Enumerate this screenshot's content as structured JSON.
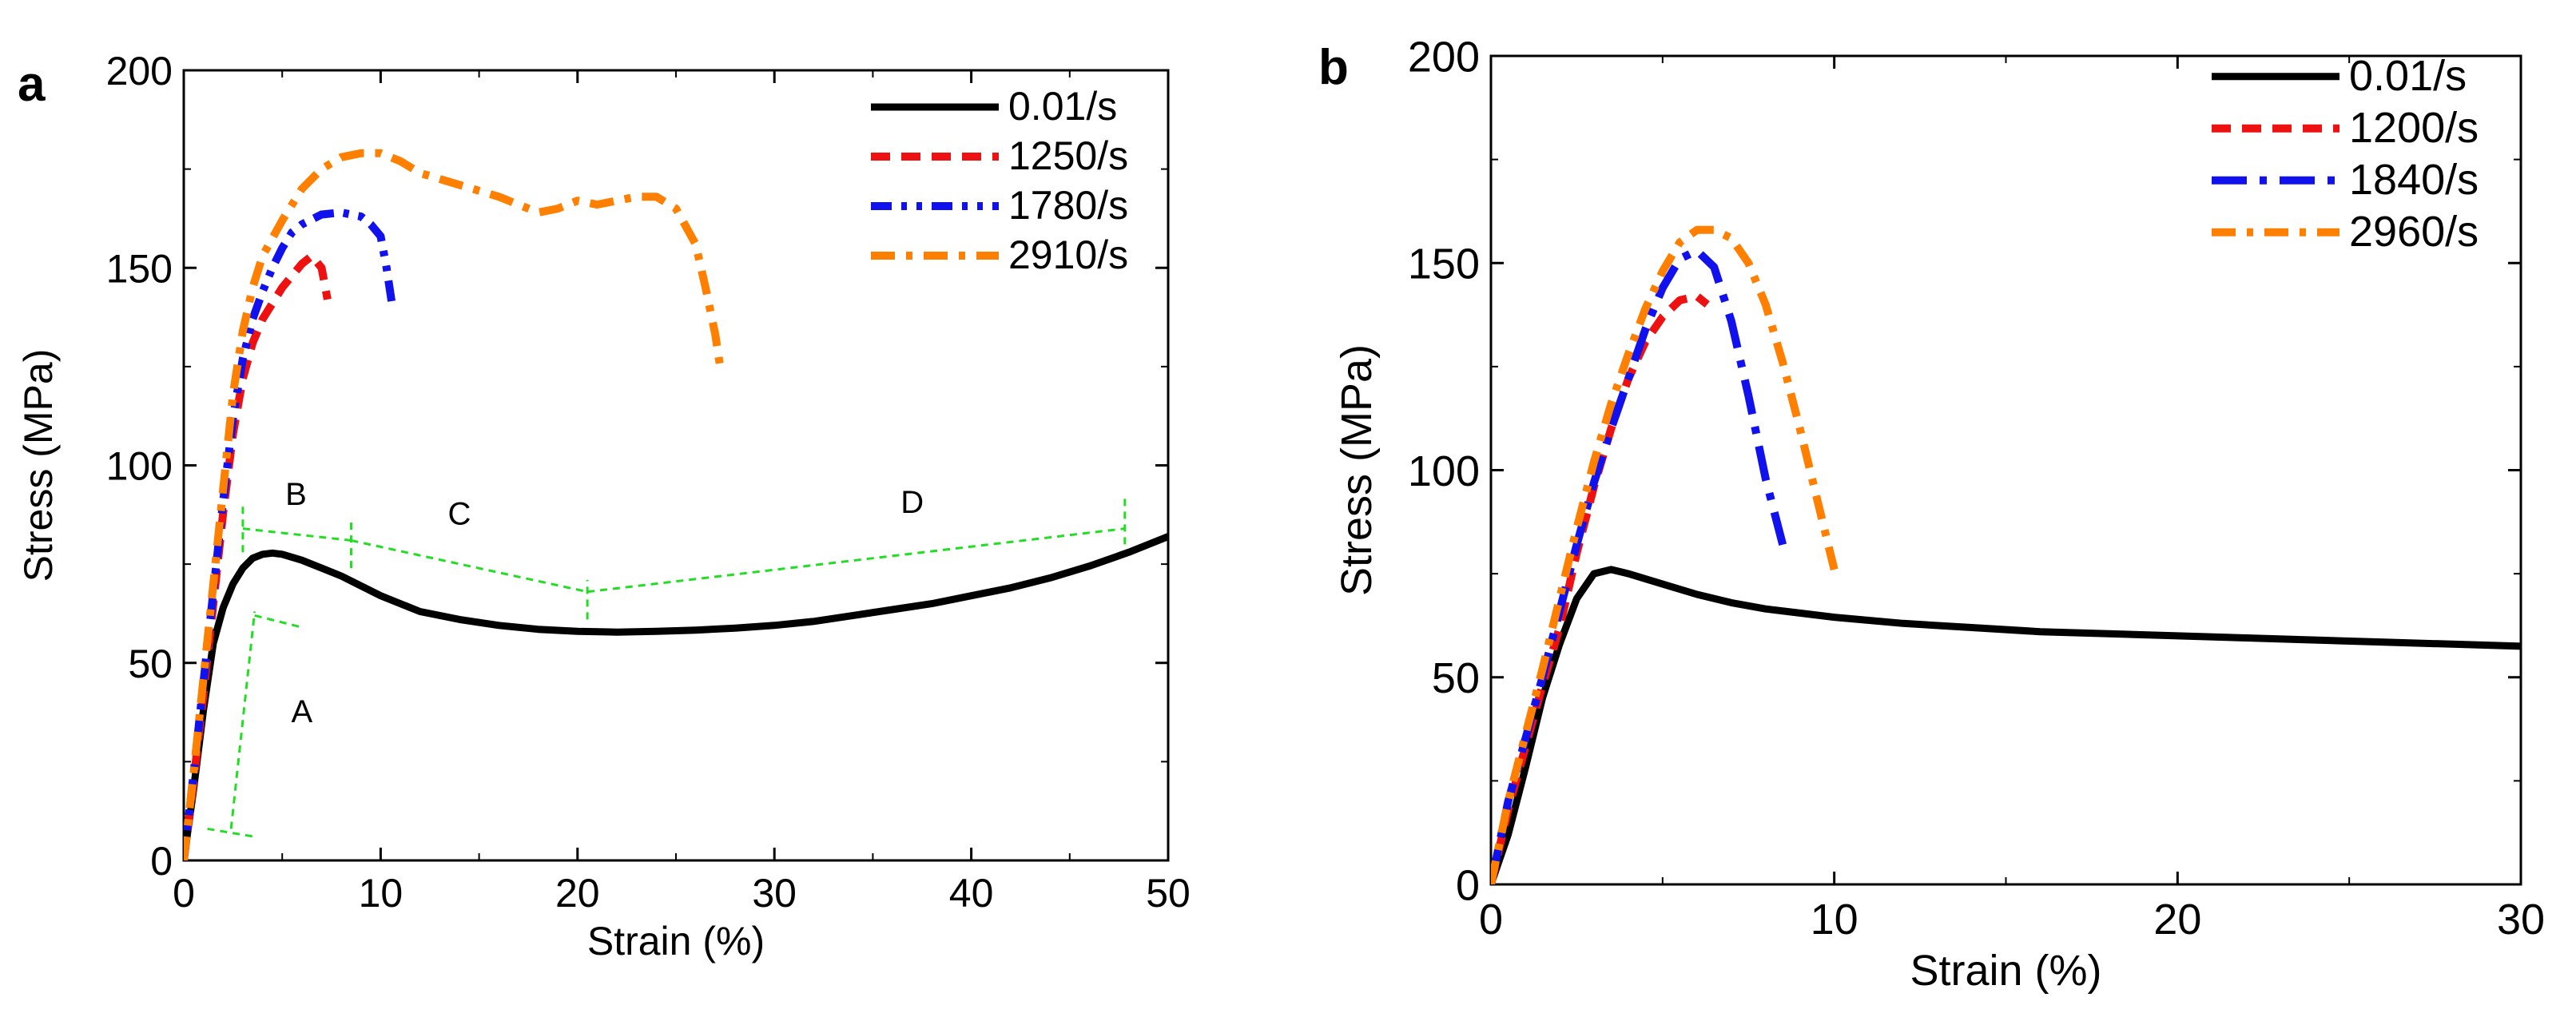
{
  "chart_data": [
    {
      "panel_label": "a",
      "type": "line",
      "title": "",
      "xlabel": "Strain (%)",
      "ylabel": "Stress (MPa)",
      "xlim": [
        0,
        50
      ],
      "ylim": [
        0,
        200
      ],
      "xticks": [
        "0",
        "10",
        "20",
        "30",
        "40",
        "50"
      ],
      "yticks": [
        "0",
        "50",
        "100",
        "150",
        "200"
      ],
      "grid": false,
      "legend_position": "top-right",
      "series": [
        {
          "name": "0.01/s",
          "color": "#000000",
          "dash": "solid",
          "x": [
            0,
            0.5,
            1,
            1.5,
            2,
            2.5,
            3,
            3.5,
            4,
            4.5,
            5,
            6,
            7,
            8,
            10,
            12,
            14,
            16,
            18,
            20,
            22,
            24,
            26,
            28,
            30,
            32,
            34,
            36,
            38,
            40,
            42,
            44,
            46,
            48,
            50
          ],
          "y": [
            0,
            18,
            38,
            55,
            64,
            70,
            74,
            76.5,
            77.5,
            77.8,
            77.5,
            76,
            74,
            72,
            67,
            63,
            61,
            59.5,
            58.5,
            58,
            57.8,
            58,
            58.3,
            58.8,
            59.5,
            60.5,
            62,
            63.5,
            65,
            67,
            69,
            71.5,
            74.5,
            78,
            82
          ]
        },
        {
          "name": "1250/s",
          "color": "#ee1111",
          "dash": "dash",
          "x": [
            0,
            0.5,
            1,
            1.5,
            2,
            2.5,
            3,
            3.5,
            4,
            4.5,
            5,
            5.5,
            6,
            6.5,
            7,
            7.3
          ],
          "y": [
            0,
            20,
            42,
            65,
            88,
            108,
            122,
            131,
            137,
            141,
            145,
            148,
            151,
            153,
            150,
            142
          ]
        },
        {
          "name": "1780/s",
          "color": "#1111ee",
          "dash": "dashdotdot",
          "x": [
            0,
            0.5,
            1,
            1.5,
            2,
            2.5,
            3,
            3.5,
            4,
            4.5,
            5,
            5.5,
            6,
            7,
            8,
            9,
            9.5,
            10,
            10.3,
            10.6
          ],
          "y": [
            0,
            22,
            45,
            68,
            91,
            112,
            127,
            137,
            144,
            150,
            155,
            159,
            161,
            163.5,
            164,
            163,
            161,
            158,
            150,
            140
          ]
        },
        {
          "name": "2910/s",
          "color": "#ff7f00",
          "dash": "dashdot",
          "x": [
            0,
            0.5,
            1,
            1.5,
            2,
            2.5,
            3,
            3.5,
            4,
            5,
            6,
            7,
            8,
            9,
            10,
            11,
            12,
            14,
            16,
            18,
            19,
            20,
            21,
            22,
            23,
            24,
            25,
            26,
            26.5,
            27,
            27.3
          ],
          "y": [
            0,
            22,
            46,
            70,
            94,
            118,
            134,
            145,
            153,
            162,
            170,
            175,
            178,
            179,
            179,
            177,
            174,
            171,
            168,
            164,
            165,
            167,
            166,
            167,
            168,
            168,
            165,
            156,
            145,
            133,
            123
          ]
        }
      ],
      "annotations": [
        {
          "text": "A",
          "x": 6,
          "y": 35
        },
        {
          "text": "B",
          "x": 5.7,
          "y": 90
        },
        {
          "text": "C",
          "x": 14,
          "y": 85
        },
        {
          "text": "D",
          "x": 37,
          "y": 88
        }
      ]
    },
    {
      "panel_label": "b",
      "type": "line",
      "title": "",
      "xlabel": "Strain (%)",
      "ylabel": "Stress (MPa)",
      "xlim": [
        0,
        30
      ],
      "ylim": [
        0,
        200
      ],
      "xticks": [
        "0",
        "10",
        "20",
        "30"
      ],
      "yticks": [
        "0",
        "50",
        "100",
        "150",
        "200"
      ],
      "grid": false,
      "legend_position": "top-right",
      "series": [
        {
          "name": "0.01/s",
          "color": "#000000",
          "dash": "solid",
          "x": [
            0,
            0.5,
            1,
            1.5,
            2,
            2.5,
            3,
            3.5,
            4,
            5,
            6,
            7,
            8,
            9,
            10,
            12,
            14,
            16,
            18,
            20,
            22,
            24,
            26,
            28,
            30
          ],
          "y": [
            0,
            12,
            28,
            45,
            58,
            69,
            75,
            76,
            75,
            72.5,
            70,
            68,
            66.5,
            65.5,
            64.5,
            63,
            62,
            61,
            60.5,
            60,
            59.5,
            59,
            58.5,
            58,
            57.5
          ]
        },
        {
          "name": "1200/s",
          "color": "#ee1111",
          "dash": "dash",
          "x": [
            0,
            0.5,
            1,
            1.5,
            2,
            2.5,
            3,
            3.5,
            4,
            4.5,
            5,
            5.5,
            6,
            6.3
          ],
          "y": [
            0,
            18,
            33,
            48,
            62,
            80,
            96,
            110,
            122,
            131,
            137,
            141,
            142,
            140
          ]
        },
        {
          "name": "1840/s",
          "color": "#1111ee",
          "dash": "longdashdot",
          "x": [
            0,
            0.5,
            1,
            1.5,
            2,
            2.5,
            3,
            3.5,
            4,
            4.5,
            5,
            5.5,
            6,
            6.5,
            7,
            7.5,
            8,
            8.5
          ],
          "y": [
            0,
            20,
            35,
            50,
            66,
            82,
            97,
            110,
            122,
            134,
            144,
            151,
            153,
            149,
            136,
            118,
            98,
            82
          ]
        },
        {
          "name": "2960/s",
          "color": "#ff7f00",
          "dash": "dashdot",
          "x": [
            0,
            0.5,
            1,
            1.5,
            2,
            2.5,
            3,
            3.5,
            4,
            4.5,
            5,
            5.5,
            6,
            6.5,
            7,
            7.5,
            8,
            8.5,
            9,
            9.5,
            10
          ],
          "y": [
            0,
            20,
            36,
            52,
            69,
            86,
            102,
            116,
            128,
            139,
            148,
            155,
            158,
            158,
            156,
            150,
            140,
            126,
            110,
            93,
            76
          ]
        }
      ]
    }
  ]
}
